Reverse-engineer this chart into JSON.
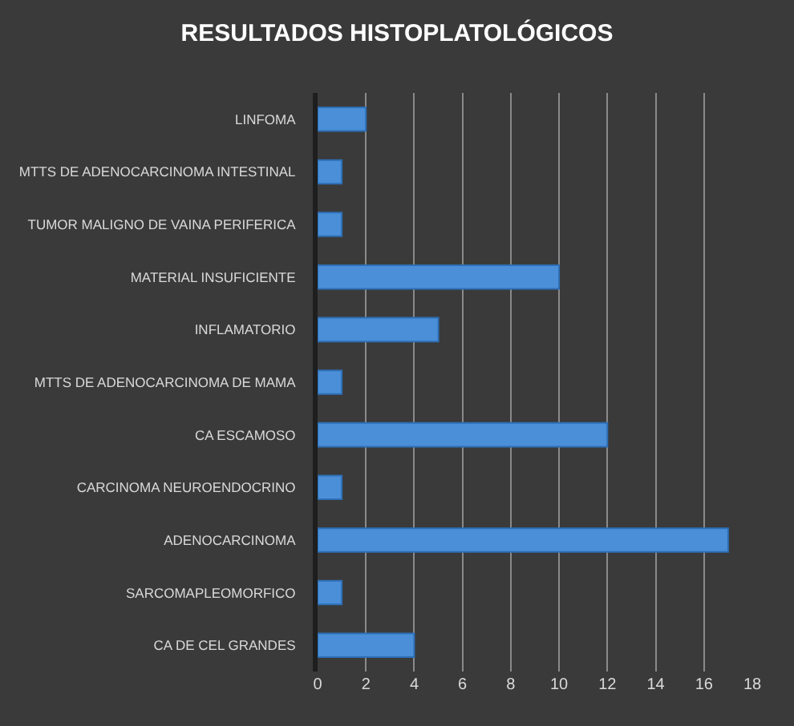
{
  "chart_data": {
    "type": "bar",
    "orientation": "horizontal",
    "title": "RESULTADOS HISTOPLATOLÓGICOS",
    "categories": [
      "LINFOMA",
      "MTTS DE ADENOCARCINOMA INTESTINAL",
      "TUMOR MALIGNO DE VAINA PERIFERICA",
      "MATERIAL INSUFICIENTE",
      "INFLAMATORIO",
      "MTTS DE ADENOCARCINOMA DE MAMA",
      "CA ESCAMOSO",
      "CARCINOMA NEUROENDOCRINO",
      "ADENOCARCINOMA",
      "SARCOMAPLEOMORFICO",
      "CA DE CEL GRANDES"
    ],
    "values": [
      2,
      1,
      1,
      10,
      5,
      1,
      12,
      1,
      17,
      1,
      4
    ],
    "color": "#4a8fd8",
    "xlim": [
      0,
      18
    ],
    "xticks": [
      0,
      2,
      4,
      6,
      8,
      10,
      12,
      14,
      16,
      18
    ],
    "grid": "x"
  }
}
